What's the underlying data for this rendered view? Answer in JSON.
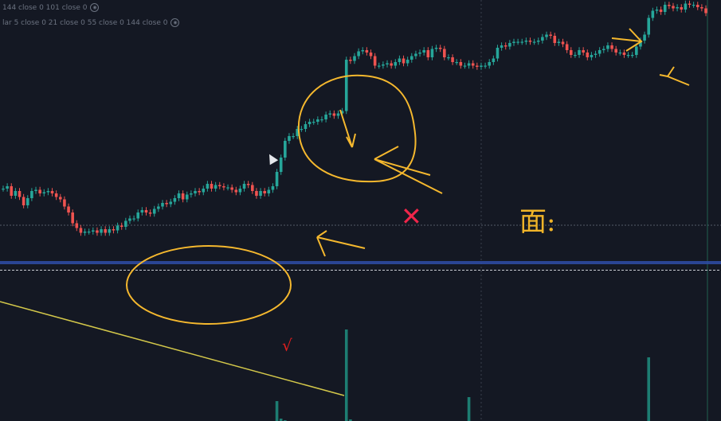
{
  "legend": {
    "line1": "144 close 0 101 close 0",
    "line2": "lar 5 close 0 21 close 0 55 close 0 144 close 0"
  },
  "annotations": {
    "x_mark": "✕",
    "check_mark": "√",
    "handwritten_note": "面:"
  },
  "colors": {
    "up": "#26a69a",
    "down": "#ef5350",
    "highlight": "#f5b82e",
    "level_line": "#2e4ea8",
    "trendline": "#d4c84a"
  },
  "chart_data": {
    "type": "candlestick",
    "title": "",
    "xlabel": "",
    "ylabel": "",
    "ylim": [
      90,
      118
    ],
    "close": [
      102.2,
      102.4,
      101.6,
      102.0,
      101.5,
      100.8,
      101.4,
      102.0,
      102.1,
      101.8,
      101.9,
      102.0,
      101.8,
      101.5,
      101.3,
      100.7,
      100.2,
      99.3,
      98.9,
      98.5,
      98.6,
      98.6,
      98.7,
      98.5,
      98.8,
      98.5,
      98.8,
      98.7,
      99.1,
      99.0,
      99.5,
      99.7,
      99.7,
      100.2,
      100.4,
      100.2,
      100.1,
      100.5,
      100.7,
      101.0,
      100.9,
      101.1,
      101.4,
      101.8,
      101.3,
      101.7,
      101.8,
      102.0,
      101.9,
      102.2,
      102.6,
      102.2,
      102.5,
      102.4,
      102.3,
      102.3,
      102.1,
      101.9,
      102.2,
      102.6,
      102.5,
      102.0,
      101.6,
      102.0,
      101.8,
      102.1,
      102.4,
      103.6,
      104.8,
      106.2,
      106.6,
      106.6,
      107.2,
      107.2,
      107.6,
      107.8,
      107.8,
      108.0,
      108.0,
      108.4,
      108.5,
      108.3,
      108.5,
      108.7,
      113.0,
      112.9,
      113.3,
      113.7,
      113.8,
      113.6,
      113.3,
      112.5,
      112.5,
      112.6,
      112.7,
      112.5,
      112.8,
      113.1,
      112.7,
      113.0,
      113.3,
      113.5,
      113.6,
      113.8,
      113.2,
      113.9,
      114.0,
      113.9,
      113.2,
      113.2,
      112.8,
      112.8,
      112.5,
      112.5,
      112.7,
      112.5,
      112.4,
      112.5,
      112.5,
      112.8,
      113.1,
      114.0,
      114.2,
      114.1,
      114.4,
      114.5,
      114.5,
      114.5,
      114.6,
      114.5,
      114.5,
      114.6,
      114.9,
      115.1,
      115.0,
      114.4,
      114.5,
      114.3,
      113.8,
      113.4,
      113.4,
      113.8,
      113.6,
      113.2,
      113.4,
      113.5,
      113.8,
      113.9,
      114.2,
      113.9,
      113.6,
      113.6,
      113.4,
      113.4,
      113.4,
      114.1,
      114.6,
      115.1,
      116.5,
      117.1,
      117.2,
      117.0,
      117.6,
      117.5,
      117.3,
      117.4,
      117.2,
      117.7,
      117.6,
      117.6,
      117.4,
      117.3,
      116.9
    ],
    "volume": [
      0,
      0,
      0,
      0,
      0,
      0,
      0,
      0,
      0,
      0,
      0,
      0,
      0,
      0,
      0,
      0,
      0,
      0,
      0,
      0,
      0,
      0,
      0,
      0,
      0,
      0,
      0,
      0,
      0,
      0,
      0,
      0,
      0,
      0,
      0,
      0,
      0,
      0,
      0,
      0,
      0,
      0,
      0,
      0,
      0,
      0,
      0,
      0,
      0,
      0,
      0,
      0,
      0,
      0,
      0,
      0,
      0,
      0,
      0,
      0,
      0,
      0,
      0,
      0,
      0,
      0,
      0,
      25,
      3,
      1,
      0,
      0,
      0,
      0,
      0,
      0,
      0,
      0,
      0,
      0,
      0,
      0,
      0,
      0,
      115,
      2,
      0,
      0,
      0,
      0,
      0,
      0,
      0,
      0,
      0,
      0,
      0,
      0,
      0,
      0,
      0,
      0,
      0,
      0,
      0,
      0,
      0,
      0,
      0,
      0,
      0,
      0,
      0,
      0,
      30,
      0,
      0,
      0,
      0,
      0,
      0,
      0,
      0,
      0,
      0,
      0,
      0,
      0,
      0,
      0,
      0,
      0,
      0,
      0,
      0,
      0,
      0,
      0,
      0,
      0,
      0,
      0,
      0,
      0,
      0,
      0,
      0,
      0,
      0,
      0,
      0,
      0,
      0,
      0,
      0,
      0,
      0,
      0,
      80,
      0,
      0,
      0,
      0,
      0,
      0,
      0,
      0,
      0,
      0,
      0,
      0,
      0,
      0
    ],
    "levels": [
      96.0,
      95.5
    ],
    "grid": false
  }
}
